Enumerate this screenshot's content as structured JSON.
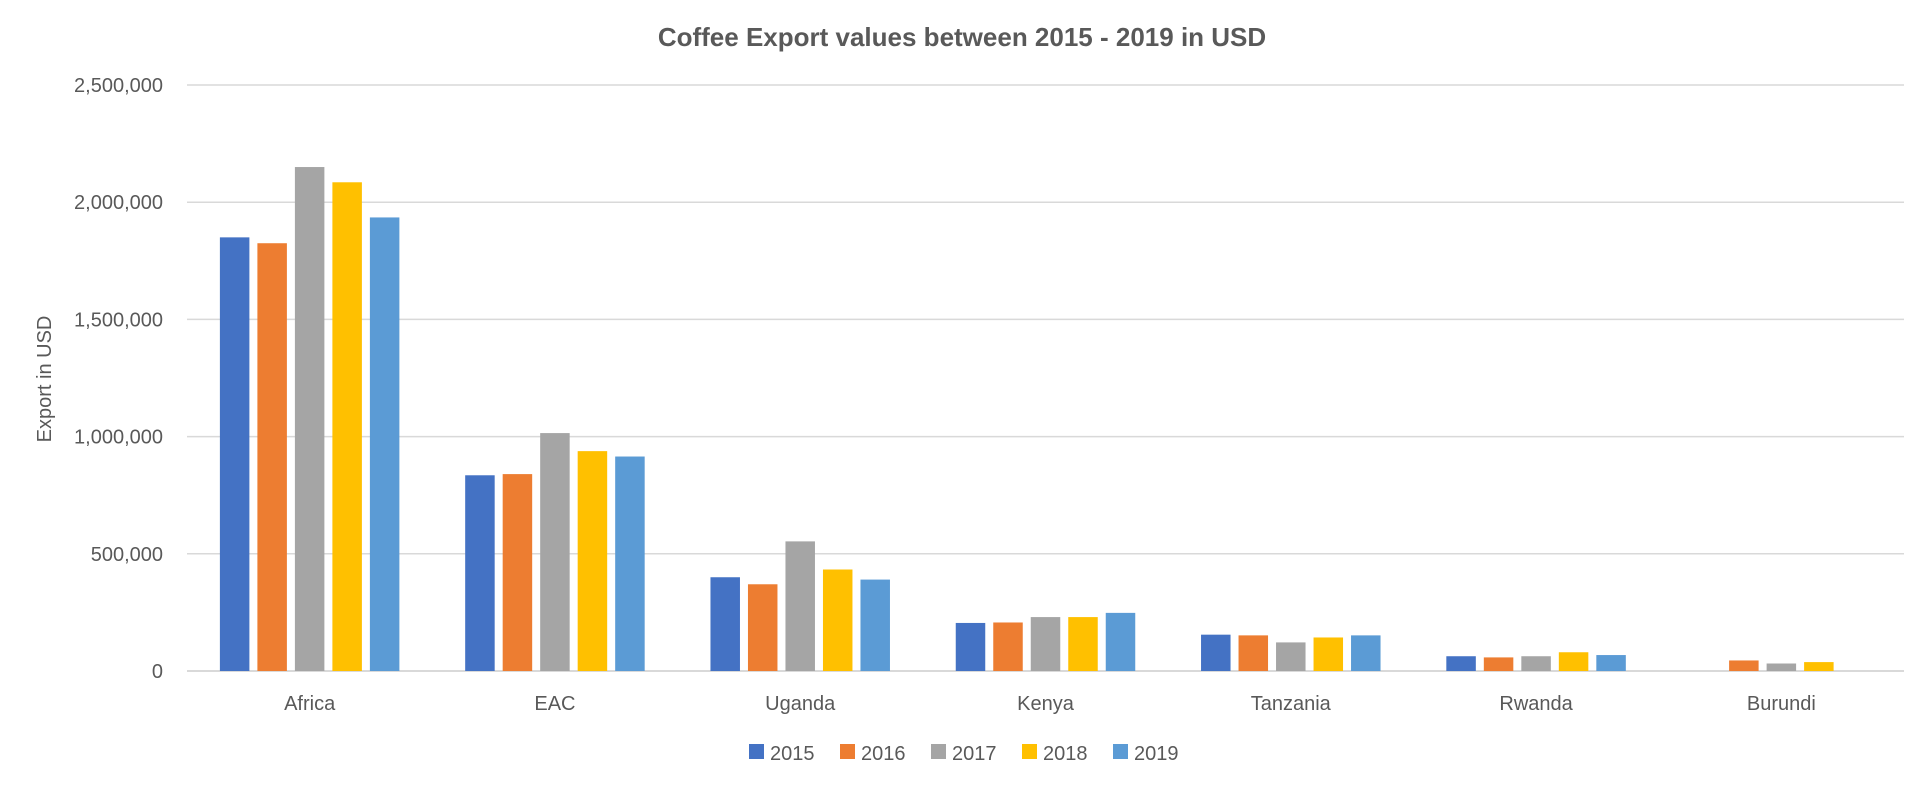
{
  "chart_data": {
    "type": "bar",
    "title": "Coffee Export values between 2015 - 2019 in USD",
    "xlabel": "",
    "ylabel": "Export in USD",
    "ylim": [
      0,
      2500000
    ],
    "yticks": [
      0,
      500000,
      1000000,
      1500000,
      2000000,
      2500000
    ],
    "ytick_labels": [
      "0",
      "500,000",
      "1,000,000",
      "1,500,000",
      "2,000,000",
      "2,500,000"
    ],
    "grid": true,
    "legend_position": "bottom",
    "categories": [
      "Africa",
      "EAC",
      "Uganda",
      "Kenya",
      "Tanzania",
      "Rwanda",
      "Burundi"
    ],
    "series": [
      {
        "name": "2015",
        "color": "#4472C4",
        "values": [
          1850000,
          835000,
          400000,
          205000,
          155000,
          63000,
          0
        ]
      },
      {
        "name": "2016",
        "color": "#ED7D31",
        "values": [
          1825000,
          840000,
          370000,
          207000,
          152000,
          58000,
          45000
        ]
      },
      {
        "name": "2017",
        "color": "#A5A5A5",
        "values": [
          2150000,
          1015000,
          553000,
          230000,
          122000,
          63000,
          32000
        ]
      },
      {
        "name": "2018",
        "color": "#FFC000",
        "values": [
          2085000,
          938000,
          433000,
          230000,
          143000,
          80000,
          38000
        ]
      },
      {
        "name": "2019",
        "color": "#5B9BD5",
        "values": [
          1935000,
          915000,
          390000,
          248000,
          152000,
          68000,
          0
        ]
      }
    ]
  }
}
